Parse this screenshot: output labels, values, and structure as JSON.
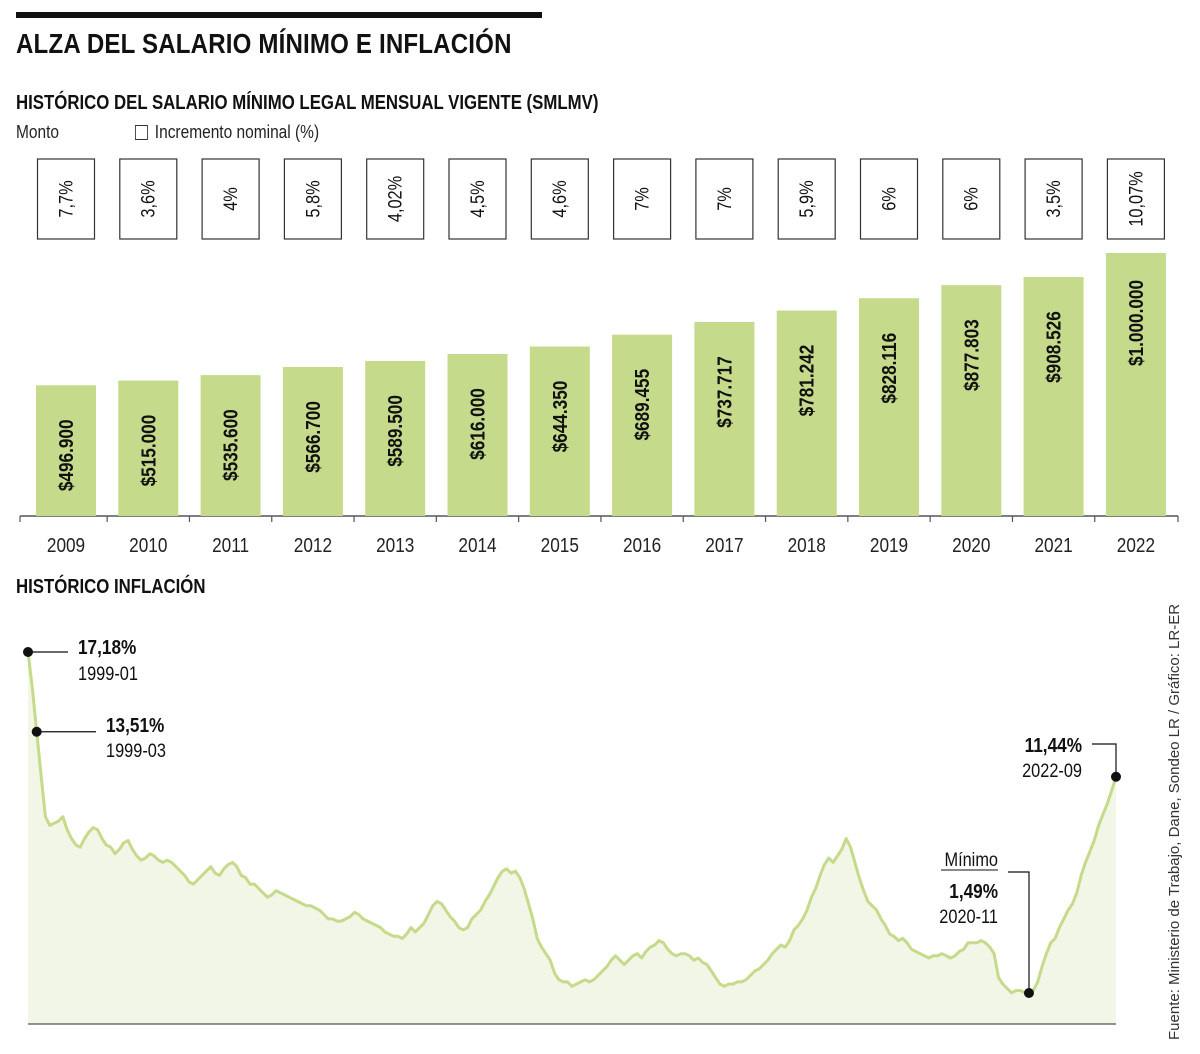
{
  "header": {
    "title": "ALZA DEL SALARIO MÍNIMO E INFLACIÓN"
  },
  "salario": {
    "title": "HISTÓRICO DEL SALARIO MÍNIMO LEGAL MENSUAL VIGENTE (SMLMV)",
    "legend_amount": "Monto",
    "legend_increase": "Incremento nominal (%)"
  },
  "inflacion": {
    "title": "HISTÓRICO INFLACIÓN",
    "min_label": "Mínimo"
  },
  "source": "Fuente: Ministerio de Trabajo, Dane, Sondeo LR / Gráfico: LR-ER",
  "colors": {
    "bar_fill": "#c5da8a",
    "line_stroke": "#c5da8a",
    "area_fill": "#f1f6e6",
    "text": "#111111"
  },
  "chart_data": [
    {
      "type": "bar",
      "categories": [
        "2009",
        "2010",
        "2011",
        "2012",
        "2013",
        "2014",
        "2015",
        "2016",
        "2017",
        "2018",
        "2019",
        "2020",
        "2021",
        "2022"
      ],
      "values": [
        496900,
        515000,
        535600,
        566700,
        589500,
        616000,
        644350,
        689455,
        737717,
        781242,
        828116,
        877803,
        908526,
        1000000
      ],
      "value_labels": [
        "$496.900",
        "$515.000",
        "$535.600",
        "$566.700",
        "$589.500",
        "$616.000",
        "$644.350",
        "$689.455",
        "$737.717",
        "$781.242",
        "$828.116",
        "$877.803",
        "$908.526",
        "$1.000.000"
      ],
      "increase_labels": [
        "7,7%",
        "3,6%",
        "4%",
        "5,8%",
        "4,02%",
        "4,5%",
        "4,6%",
        "7%",
        "7%",
        "5,9%",
        "6%",
        "6%",
        "3,5%",
        "10,07%"
      ],
      "ylim": [
        0,
        1000000
      ]
    },
    {
      "type": "area",
      "x_start": "1999-01",
      "x_end": "2022-09",
      "y": [
        17.18,
        15.5,
        13.51,
        11.5,
        9.6,
        9.2,
        9.3,
        9.4,
        9.6,
        9.0,
        8.6,
        8.3,
        8.2,
        8.6,
        8.9,
        9.1,
        9.0,
        8.6,
        8.3,
        8.2,
        7.9,
        8.1,
        8.4,
        8.5,
        8.1,
        7.8,
        7.6,
        7.7,
        7.9,
        7.8,
        7.6,
        7.5,
        7.6,
        7.5,
        7.3,
        7.1,
        6.9,
        6.6,
        6.5,
        6.7,
        6.9,
        7.1,
        7.3,
        7.0,
        6.9,
        7.2,
        7.4,
        7.5,
        7.3,
        6.9,
        6.8,
        6.5,
        6.5,
        6.3,
        6.1,
        5.9,
        6.0,
        6.2,
        6.1,
        6.0,
        5.9,
        5.8,
        5.7,
        5.6,
        5.5,
        5.5,
        5.4,
        5.3,
        5.1,
        4.9,
        4.9,
        4.8,
        4.8,
        4.9,
        5.0,
        5.2,
        5.1,
        4.9,
        4.8,
        4.7,
        4.6,
        4.5,
        4.3,
        4.2,
        4.1,
        4.1,
        4.0,
        4.2,
        4.5,
        4.3,
        4.5,
        4.7,
        5.1,
        5.5,
        5.7,
        5.6,
        5.3,
        5.0,
        4.8,
        4.5,
        4.4,
        4.5,
        4.9,
        5.1,
        5.3,
        5.7,
        6.0,
        6.4,
        6.8,
        7.1,
        7.2,
        7.0,
        7.1,
        6.8,
        6.3,
        5.6,
        4.9,
        4.0,
        3.6,
        3.3,
        3.0,
        2.4,
        2.1,
        2.0,
        2.0,
        1.8,
        1.9,
        2.0,
        2.1,
        2.0,
        2.1,
        2.3,
        2.5,
        2.7,
        3.0,
        3.2,
        3.0,
        2.8,
        3.0,
        3.2,
        3.3,
        3.1,
        3.4,
        3.6,
        3.7,
        3.9,
        3.8,
        3.5,
        3.3,
        3.2,
        3.3,
        3.3,
        3.2,
        3.0,
        3.1,
        2.9,
        2.8,
        2.5,
        2.2,
        1.9,
        1.8,
        1.9,
        1.9,
        2.0,
        2.0,
        2.1,
        2.3,
        2.5,
        2.6,
        2.8,
        3.0,
        3.3,
        3.5,
        3.7,
        3.6,
        3.9,
        4.4,
        4.6,
        4.9,
        5.3,
        5.9,
        6.3,
        6.9,
        7.4,
        7.7,
        7.5,
        7.8,
        8.1,
        8.6,
        8.2,
        7.5,
        6.8,
        6.2,
        5.7,
        5.5,
        5.3,
        4.9,
        4.6,
        4.2,
        4.1,
        3.9,
        4.0,
        3.8,
        3.5,
        3.4,
        3.3,
        3.2,
        3.1,
        3.2,
        3.2,
        3.3,
        3.2,
        3.1,
        3.2,
        3.4,
        3.5,
        3.8,
        3.8,
        3.8,
        3.9,
        3.8,
        3.6,
        3.3,
        2.2,
        1.9,
        1.7,
        1.5,
        1.6,
        1.61,
        1.51,
        1.49,
        1.6,
        2.0,
        2.7,
        3.3,
        3.8,
        4.0,
        4.5,
        4.9,
        5.3,
        5.6,
        6.1,
        6.9,
        7.5,
        8.0,
        8.5,
        9.2,
        9.7,
        10.2,
        10.8,
        11.44
      ],
      "annotations": [
        {
          "label": "17,18%",
          "date": "1999-01"
        },
        {
          "label": "13,51%",
          "date": "1999-03"
        },
        {
          "label": "1,49%",
          "date": "2020-11"
        },
        {
          "label": "11,44%",
          "date": "2022-09"
        }
      ]
    }
  ]
}
